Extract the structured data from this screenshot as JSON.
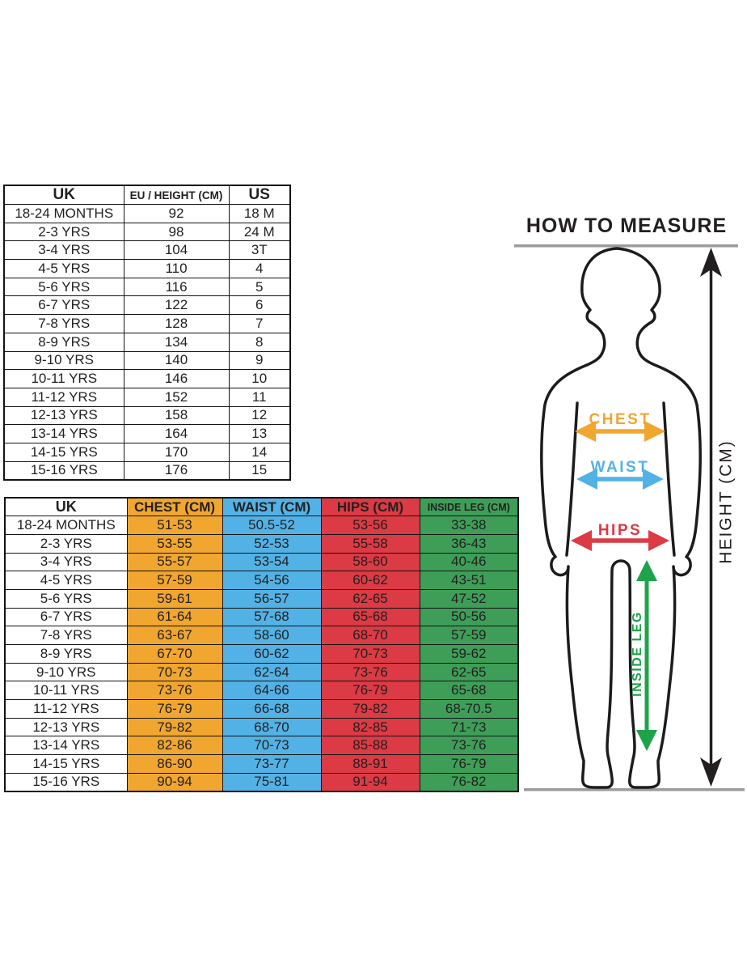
{
  "colors": {
    "chest": "#F0A62F",
    "waist": "#53B2E5",
    "hips": "#DC3A44",
    "leg": "#3E9E58",
    "legArrow": "#1FA34A",
    "ink": "#231F20",
    "gray": "#9B9B9B"
  },
  "size_conversion_table": {
    "headers": [
      "UK",
      "EU / HEIGHT (CM)",
      "US"
    ],
    "rows": [
      [
        "18-24 MONTHS",
        "92",
        "18 M"
      ],
      [
        "2-3 YRS",
        "98",
        "24 M"
      ],
      [
        "3-4 YRS",
        "104",
        "3T"
      ],
      [
        "4-5 YRS",
        "110",
        "4"
      ],
      [
        "5-6 YRS",
        "116",
        "5"
      ],
      [
        "6-7 YRS",
        "122",
        "6"
      ],
      [
        "7-8 YRS",
        "128",
        "7"
      ],
      [
        "8-9 YRS",
        "134",
        "8"
      ],
      [
        "9-10 YRS",
        "140",
        "9"
      ],
      [
        "10-11 YRS",
        "146",
        "10"
      ],
      [
        "11-12 YRS",
        "152",
        "11"
      ],
      [
        "12-13 YRS",
        "158",
        "12"
      ],
      [
        "13-14 YRS",
        "164",
        "13"
      ],
      [
        "14-15 YRS",
        "170",
        "14"
      ],
      [
        "15-16 YRS",
        "176",
        "15"
      ]
    ]
  },
  "body_measurement_table": {
    "headers": [
      "UK",
      "CHEST (CM)",
      "WAIST (CM)",
      "HIPS (CM)",
      "INSIDE LEG (CM)"
    ],
    "rows": [
      [
        "18-24 MONTHS",
        "51-53",
        "50.5-52",
        "53-56",
        "33-38"
      ],
      [
        "2-3 YRS",
        "53-55",
        "52-53",
        "55-58",
        "36-43"
      ],
      [
        "3-4 YRS",
        "55-57",
        "53-54",
        "58-60",
        "40-46"
      ],
      [
        "4-5 YRS",
        "57-59",
        "54-56",
        "60-62",
        "43-51"
      ],
      [
        "5-6 YRS",
        "59-61",
        "56-57",
        "62-65",
        "47-52"
      ],
      [
        "6-7 YRS",
        "61-64",
        "57-68",
        "65-68",
        "50-56"
      ],
      [
        "7-8 YRS",
        "63-67",
        "58-60",
        "68-70",
        "57-59"
      ],
      [
        "8-9 YRS",
        "67-70",
        "60-62",
        "70-73",
        "59-62"
      ],
      [
        "9-10 YRS",
        "70-73",
        "62-64",
        "73-76",
        "62-65"
      ],
      [
        "10-11 YRS",
        "73-76",
        "64-66",
        "76-79",
        "65-68"
      ],
      [
        "11-12 YRS",
        "76-79",
        "66-68",
        "79-82",
        "68-70.5"
      ],
      [
        "12-13 YRS",
        "79-82",
        "68-70",
        "82-85",
        "71-73"
      ],
      [
        "13-14 YRS",
        "82-86",
        "70-73",
        "85-88",
        "73-76"
      ],
      [
        "14-15 YRS",
        "86-90",
        "73-77",
        "88-91",
        "76-79"
      ],
      [
        "15-16 YRS",
        "90-94",
        "75-81",
        "91-94",
        "76-82"
      ]
    ]
  },
  "diagram": {
    "title": "HOW TO MEASURE",
    "chest_label": "CHEST",
    "waist_label": "WAIST",
    "hips_label": "HIPS",
    "inside_leg_label": "INSIDE LEG",
    "height_label": "HEIGHT (CM)"
  }
}
